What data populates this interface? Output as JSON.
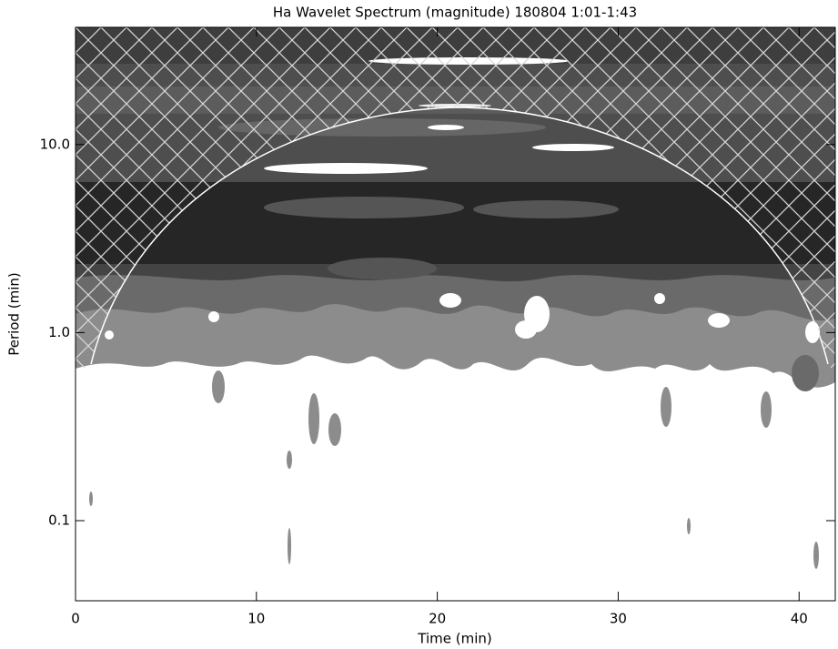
{
  "chart_data": {
    "type": "contour",
    "title": "Ha Wavelet Spectrum (magnitude) 180804 1:01-1:43",
    "x_label": "Time (min)",
    "y_label": "Period (min)",
    "xlim": [
      0,
      42
    ],
    "xticks": [
      0,
      10,
      20,
      30,
      40
    ],
    "ylim": [
      0.0375,
      42
    ],
    "y_scale": "log",
    "yticks": [
      {
        "value": 0.1,
        "label": "0.1"
      },
      {
        "value": 1,
        "label": "1.0"
      },
      {
        "value": 10,
        "label": "10.0"
      }
    ]
  }
}
